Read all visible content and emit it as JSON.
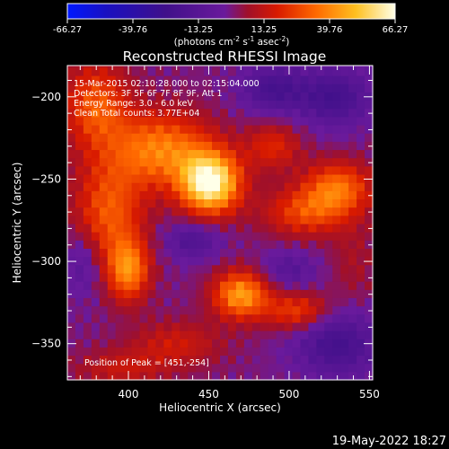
{
  "colorbar": {
    "tick_labels": [
      "-66.27",
      "-39.76",
      "-13.25",
      "13.25",
      "39.76",
      "66.27"
    ],
    "tick_values": [
      -66.27,
      -39.76,
      -13.25,
      13.25,
      39.76,
      66.27
    ],
    "range": [
      -66.27,
      66.27
    ],
    "units_prefix": "(photons cm",
    "units_exp1": "-2",
    "units_mid": " s",
    "units_exp2": "-1",
    "units_mid2": " asec",
    "units_exp3": "-2",
    "units_suffix": ")"
  },
  "chart_data": {
    "type": "heatmap",
    "title": "Reconstructed RHESSI Image",
    "xlabel": "Heliocentric X (arcsec)",
    "ylabel": "Heliocentric Y (arcsec)",
    "xlim": [
      362,
      552
    ],
    "ylim": [
      -372,
      -181
    ],
    "x_ticks": [
      400,
      450,
      500,
      550
    ],
    "y_ticks": [
      -200,
      -250,
      -300,
      -350
    ],
    "annotations": [
      "15-Mar-2015 02:10:28.000 to 02:15:04.000",
      "Detectors: 3F 5F 6F 7F 8F 9F, Att 1",
      "Energy Range: 3.0 - 6.0 keV",
      "Clean     Total counts: 3.77E+04"
    ],
    "peak_label": "Position of Peak = [451,-254]",
    "peak": [
      451,
      -254
    ],
    "colormap": "rhessi-3",
    "sources": [
      {
        "x": 451,
        "y": -252,
        "amp": 66,
        "sx": 13,
        "sy": 13
      },
      {
        "x": 420,
        "y": -232,
        "amp": 38,
        "sx": 22,
        "sy": 16
      },
      {
        "x": 470,
        "y": -320,
        "amp": 44,
        "sx": 12,
        "sy": 10
      },
      {
        "x": 400,
        "y": -305,
        "amp": 38,
        "sx": 9,
        "sy": 13
      },
      {
        "x": 388,
        "y": -270,
        "amp": 30,
        "sx": 15,
        "sy": 22
      },
      {
        "x": 380,
        "y": -205,
        "amp": 30,
        "sx": 14,
        "sy": 18
      },
      {
        "x": 530,
        "y": -255,
        "amp": 34,
        "sx": 15,
        "sy": 11
      },
      {
        "x": 510,
        "y": -270,
        "amp": 26,
        "sx": 18,
        "sy": 10
      },
      {
        "x": 505,
        "y": -330,
        "amp": 26,
        "sx": 14,
        "sy": 8
      },
      {
        "x": 430,
        "y": -350,
        "amp": 16,
        "sx": 20,
        "sy": 10
      },
      {
        "x": 395,
        "y": -365,
        "amp": 14,
        "sx": 20,
        "sy": 8
      },
      {
        "x": 540,
        "y": -300,
        "amp": 8,
        "sx": 10,
        "sy": 18
      },
      {
        "x": 490,
        "y": -230,
        "amp": 20,
        "sx": 12,
        "sy": 10
      },
      {
        "x": 490,
        "y": -195,
        "amp": -22,
        "sx": 14,
        "sy": 10
      },
      {
        "x": 528,
        "y": -200,
        "amp": -24,
        "sx": 16,
        "sy": 12
      },
      {
        "x": 530,
        "y": -350,
        "amp": -24,
        "sx": 18,
        "sy": 14
      },
      {
        "x": 440,
        "y": -287,
        "amp": -18,
        "sx": 12,
        "sy": 8
      },
      {
        "x": 372,
        "y": -300,
        "amp": -14,
        "sx": 8,
        "sy": 14
      },
      {
        "x": 500,
        "y": -305,
        "amp": -14,
        "sx": 12,
        "sy": 8
      }
    ]
  },
  "timestamp": "19-May-2022 18:27"
}
